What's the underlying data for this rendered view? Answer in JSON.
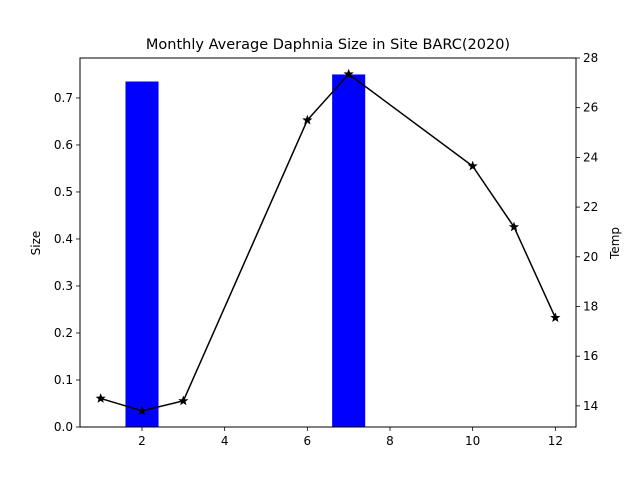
{
  "chart_data": {
    "type": "bar+line",
    "title": "Monthly Average Daphnia Size in Site BARC(2020)",
    "xlabel": "",
    "ylabel_left": "Size",
    "ylabel_right": "Temp",
    "xlim": [
      0.5,
      12.5
    ],
    "ylim_left": [
      0,
      0.785
    ],
    "ylim_right": [
      13.15,
      28
    ],
    "x_ticks": [
      2,
      4,
      6,
      8,
      10,
      12
    ],
    "y_ticks_left": [
      0.0,
      0.1,
      0.2,
      0.3,
      0.4,
      0.5,
      0.6,
      0.7
    ],
    "y_ticks_right": [
      14,
      16,
      18,
      20,
      22,
      24,
      26,
      28
    ],
    "grid": false,
    "bar_series": {
      "axis": "left",
      "color": "#0000ff",
      "bar_width": 0.8,
      "x": [
        2,
        7
      ],
      "values": [
        0.735,
        0.75
      ]
    },
    "line_series": {
      "axis": "right",
      "color": "#000000",
      "marker": "star",
      "x": [
        1,
        2,
        3,
        6,
        7,
        10,
        11,
        12
      ],
      "values": [
        14.3,
        13.8,
        14.2,
        25.5,
        27.35,
        23.65,
        21.2,
        17.55
      ]
    }
  }
}
